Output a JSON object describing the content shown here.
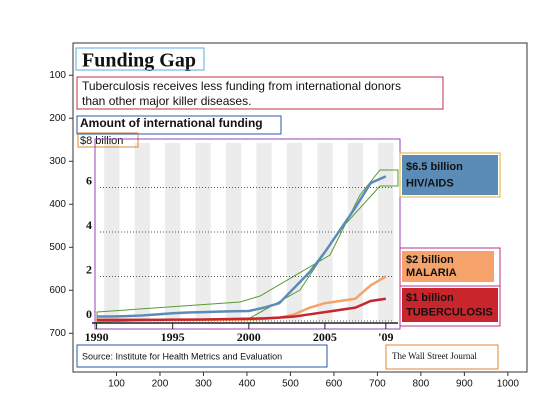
{
  "axes": {
    "xlim": [
      0,
      1044
    ],
    "ylim": [
      790,
      25
    ],
    "xticks": [
      100,
      200,
      300,
      400,
      500,
      600,
      700,
      800,
      900,
      1000
    ],
    "yticks": [
      100,
      200,
      300,
      400,
      500,
      600,
      700
    ]
  },
  "infographic": {
    "title": "Funding Gap",
    "subtitle": [
      "Tuberculosis receives less funding from international donors",
      "than other major killer diseases."
    ],
    "chart_title": "Amount of international funding",
    "unit_label": "$8 billion",
    "source": "Source: Institute for Health Metrics and Evaluation",
    "credit": "The Wall Street Journal",
    "chart_data": {
      "type": "line",
      "x": [
        1990,
        1991,
        1992,
        1993,
        1994,
        1995,
        1996,
        1997,
        1998,
        1999,
        2000,
        2001,
        2002,
        2003,
        2004,
        2005,
        2006,
        2007,
        2008,
        2009
      ],
      "xlim": [
        1989.7,
        2009.8
      ],
      "xticks": [
        1990,
        1995,
        2000,
        2005,
        {
          "value": 2009,
          "label": "'09"
        }
      ],
      "ylim": [
        0,
        8
      ],
      "yticks": [
        0,
        2,
        4,
        6
      ],
      "series": [
        {
          "name": "HIV/AIDS",
          "end_label": "$6.5 billion",
          "color": "#5b8cb8",
          "label_color": "#5b8cb8",
          "values": [
            0.2,
            0.2,
            0.22,
            0.25,
            0.3,
            0.35,
            0.38,
            0.4,
            0.42,
            0.44,
            0.45,
            0.6,
            0.8,
            1.5,
            2.2,
            3.1,
            4.1,
            5.1,
            6.2,
            6.5
          ]
        },
        {
          "name": "MALARIA",
          "end_label": "$2 billion",
          "color": "#f5a36a",
          "label_color": "#f5a36a",
          "values": [
            0.05,
            0.05,
            0.05,
            0.05,
            0.05,
            0.05,
            0.05,
            0.05,
            0.06,
            0.06,
            0.07,
            0.1,
            0.15,
            0.3,
            0.6,
            0.8,
            0.9,
            1.0,
            1.6,
            2.0
          ]
        },
        {
          "name": "TUBERCULOSIS",
          "end_label": "$1 billion",
          "color": "#c8262c",
          "label_color": "#c8262c",
          "values": [
            0.05,
            0.05,
            0.05,
            0.05,
            0.05,
            0.06,
            0.06,
            0.07,
            0.08,
            0.09,
            0.1,
            0.12,
            0.15,
            0.2,
            0.3,
            0.4,
            0.5,
            0.6,
            0.9,
            1.0
          ]
        }
      ]
    }
  }
}
